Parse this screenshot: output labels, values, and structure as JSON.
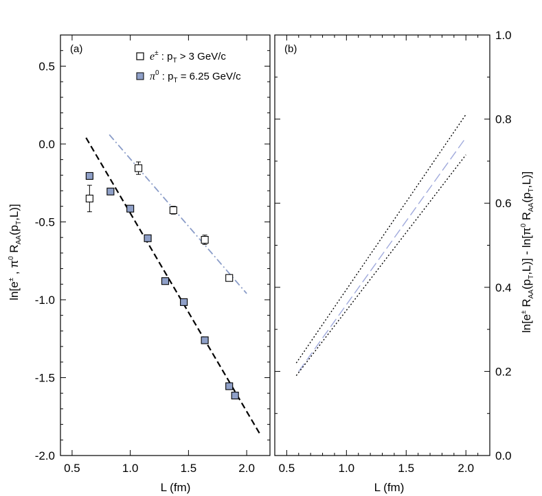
{
  "chart_data": [
    {
      "panel": "a",
      "type": "scatter",
      "panel_label": "(a)",
      "xlabel": "L (fm)",
      "ylabel": "ln[e± , π0 RAA(pT,L)]",
      "xlim": [
        0.4,
        2.2
      ],
      "ylim": [
        -2.0,
        0.7
      ],
      "xticks": [
        0.5,
        1.0,
        1.5,
        2.0
      ],
      "yticks": [
        -2.0,
        -1.5,
        -1.0,
        -0.5,
        0.0,
        0.5
      ],
      "tick_labels_x": [
        "0.5",
        "1.0",
        "1.5",
        "2.0"
      ],
      "tick_labels_y": [
        "-2.0",
        "-1.5",
        "-1.0",
        "-0.5",
        "0.0",
        "0.5"
      ],
      "legend_placement": "top",
      "legend": [
        {
          "symbol": "e",
          "sup": "±",
          "text_pre": " : p",
          "sub": "T",
          "text_post": " > 3 GeV/c"
        },
        {
          "symbol": "π",
          "sup": "0",
          "text_pre": " : p",
          "sub": "T",
          "text_post": " = 6.25 GeV/c"
        }
      ],
      "series": [
        {
          "name": "e± : pT > 3 GeV/c",
          "marker": "open-square",
          "color": "#000000",
          "points": [
            {
              "x": 0.65,
              "y": -0.35,
              "err": 0.085
            },
            {
              "x": 1.07,
              "y": -0.155,
              "err": 0.04
            },
            {
              "x": 1.37,
              "y": -0.425,
              "err": 0.025
            },
            {
              "x": 1.64,
              "y": -0.615,
              "err": 0.03
            },
            {
              "x": 1.85,
              "y": -0.86,
              "err": 0.02
            }
          ]
        },
        {
          "name": "π0 : pT = 6.25 GeV/c",
          "marker": "filled-square",
          "color": "#8fa0c8",
          "points": [
            {
              "x": 0.65,
              "y": -0.205,
              "err": 0.02
            },
            {
              "x": 0.83,
              "y": -0.305,
              "err": 0.01
            },
            {
              "x": 1.0,
              "y": -0.415,
              "err": 0.01
            },
            {
              "x": 1.15,
              "y": -0.605,
              "err": 0.01
            },
            {
              "x": 1.3,
              "y": -0.88,
              "err": 0.01
            },
            {
              "x": 1.46,
              "y": -1.015,
              "err": 0.01
            },
            {
              "x": 1.64,
              "y": -1.26,
              "err": 0.01
            },
            {
              "x": 1.85,
              "y": -1.555,
              "err": 0.015
            },
            {
              "x": 1.9,
              "y": -1.615,
              "err": 0.015
            }
          ]
        }
      ],
      "fit_lines": [
        {
          "style": "dashed",
          "color": "#000000",
          "x": [
            0.62,
            2.12
          ],
          "y": [
            0.04,
            -1.87
          ]
        },
        {
          "style": "dash-dot",
          "color": "#8a9cc8",
          "x": [
            0.82,
            2.0
          ],
          "y": [
            0.06,
            -0.96
          ]
        }
      ]
    },
    {
      "panel": "b",
      "type": "line",
      "panel_label": "(b)",
      "xlabel": "L (fm)",
      "ylabel": "ln[e± RAA(pT,L)] - ln[π0 RAA(pT,L)]",
      "xlim": [
        0.4,
        2.2
      ],
      "ylim": [
        0.0,
        1.0
      ],
      "xticks": [
        0.5,
        1.0,
        1.5,
        2.0
      ],
      "yticks": [
        0.0,
        0.2,
        0.4,
        0.6,
        0.8,
        1.0
      ],
      "tick_labels_x": [
        "0.5",
        "1.0",
        "1.5",
        "2.0"
      ],
      "tick_labels_y": [
        "0.0",
        "0.2",
        "0.4",
        "0.6",
        "0.8",
        "1.0"
      ],
      "y_axis_side": "right",
      "lines": [
        {
          "style": "long-dash",
          "color": "#a0aadc",
          "x": [
            0.6,
            2.0
          ],
          "y": [
            0.2,
            0.756
          ]
        },
        {
          "style": "dotted",
          "color": "#000000",
          "x": [
            0.58,
            2.0
          ],
          "y": [
            0.22,
            0.811
          ]
        },
        {
          "style": "dotted",
          "color": "#000000",
          "x": [
            0.58,
            2.0
          ],
          "y": [
            0.19,
            0.715
          ]
        }
      ]
    }
  ]
}
